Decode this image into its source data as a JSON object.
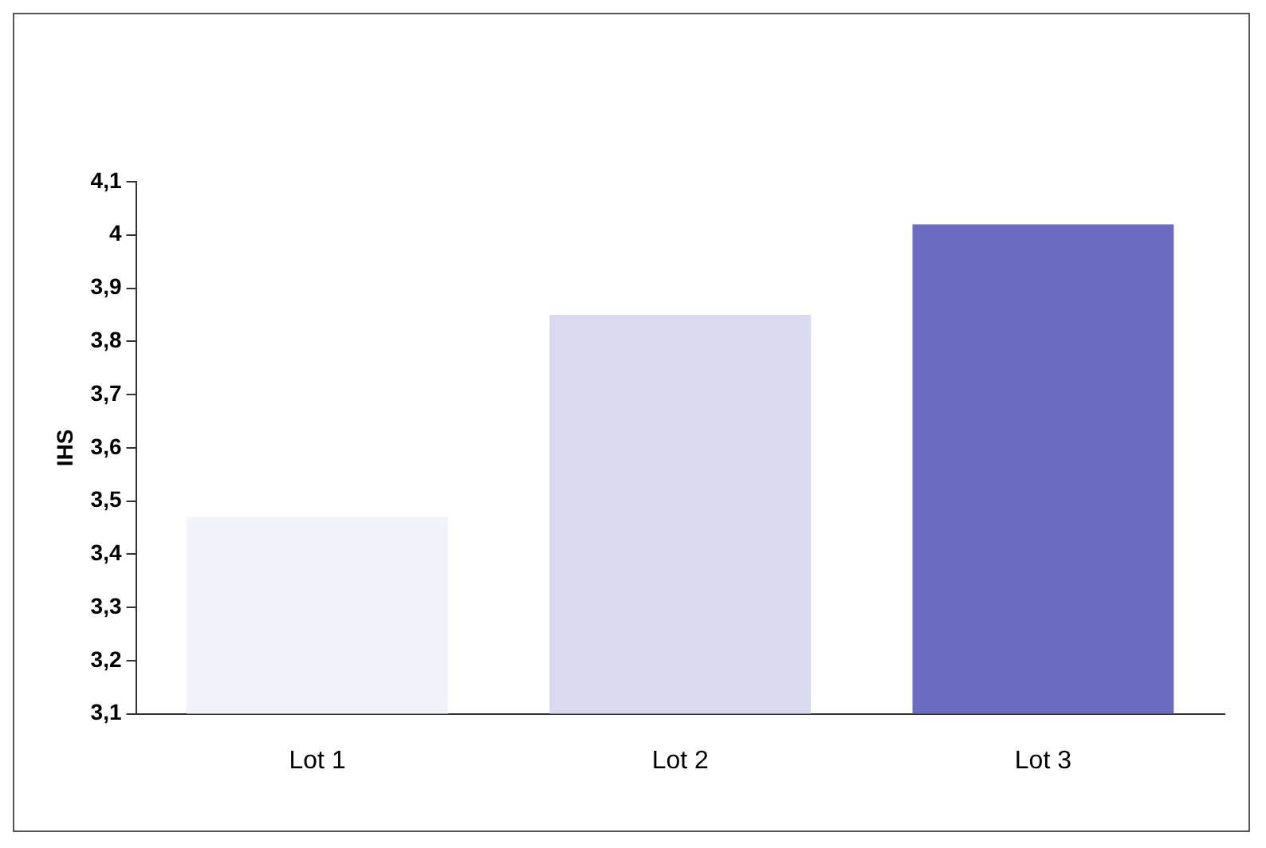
{
  "chart_data": {
    "type": "bar",
    "ylabel": "IHS",
    "categories": [
      "Lot 1",
      "Lot 2",
      "Lot 3"
    ],
    "values": [
      3.47,
      3.85,
      4.02
    ],
    "colors": [
      "#f2f2fa",
      "#d9d9ef",
      "#6b6bc0"
    ],
    "ylim": [
      3.1,
      4.1
    ],
    "yticks": [
      {
        "value": 3.1,
        "label": "3,1"
      },
      {
        "value": 3.2,
        "label": "3,2"
      },
      {
        "value": 3.3,
        "label": "3,3"
      },
      {
        "value": 3.4,
        "label": "3,4"
      },
      {
        "value": 3.5,
        "label": "3,5"
      },
      {
        "value": 3.6,
        "label": "3,6"
      },
      {
        "value": 3.7,
        "label": "3,7"
      },
      {
        "value": 3.8,
        "label": "3,8"
      },
      {
        "value": 3.9,
        "label": "3,9"
      },
      {
        "value": 4,
        "label": "4"
      },
      {
        "value": 4.1,
        "label": "4,1"
      }
    ],
    "grid": false,
    "legend": false
  }
}
